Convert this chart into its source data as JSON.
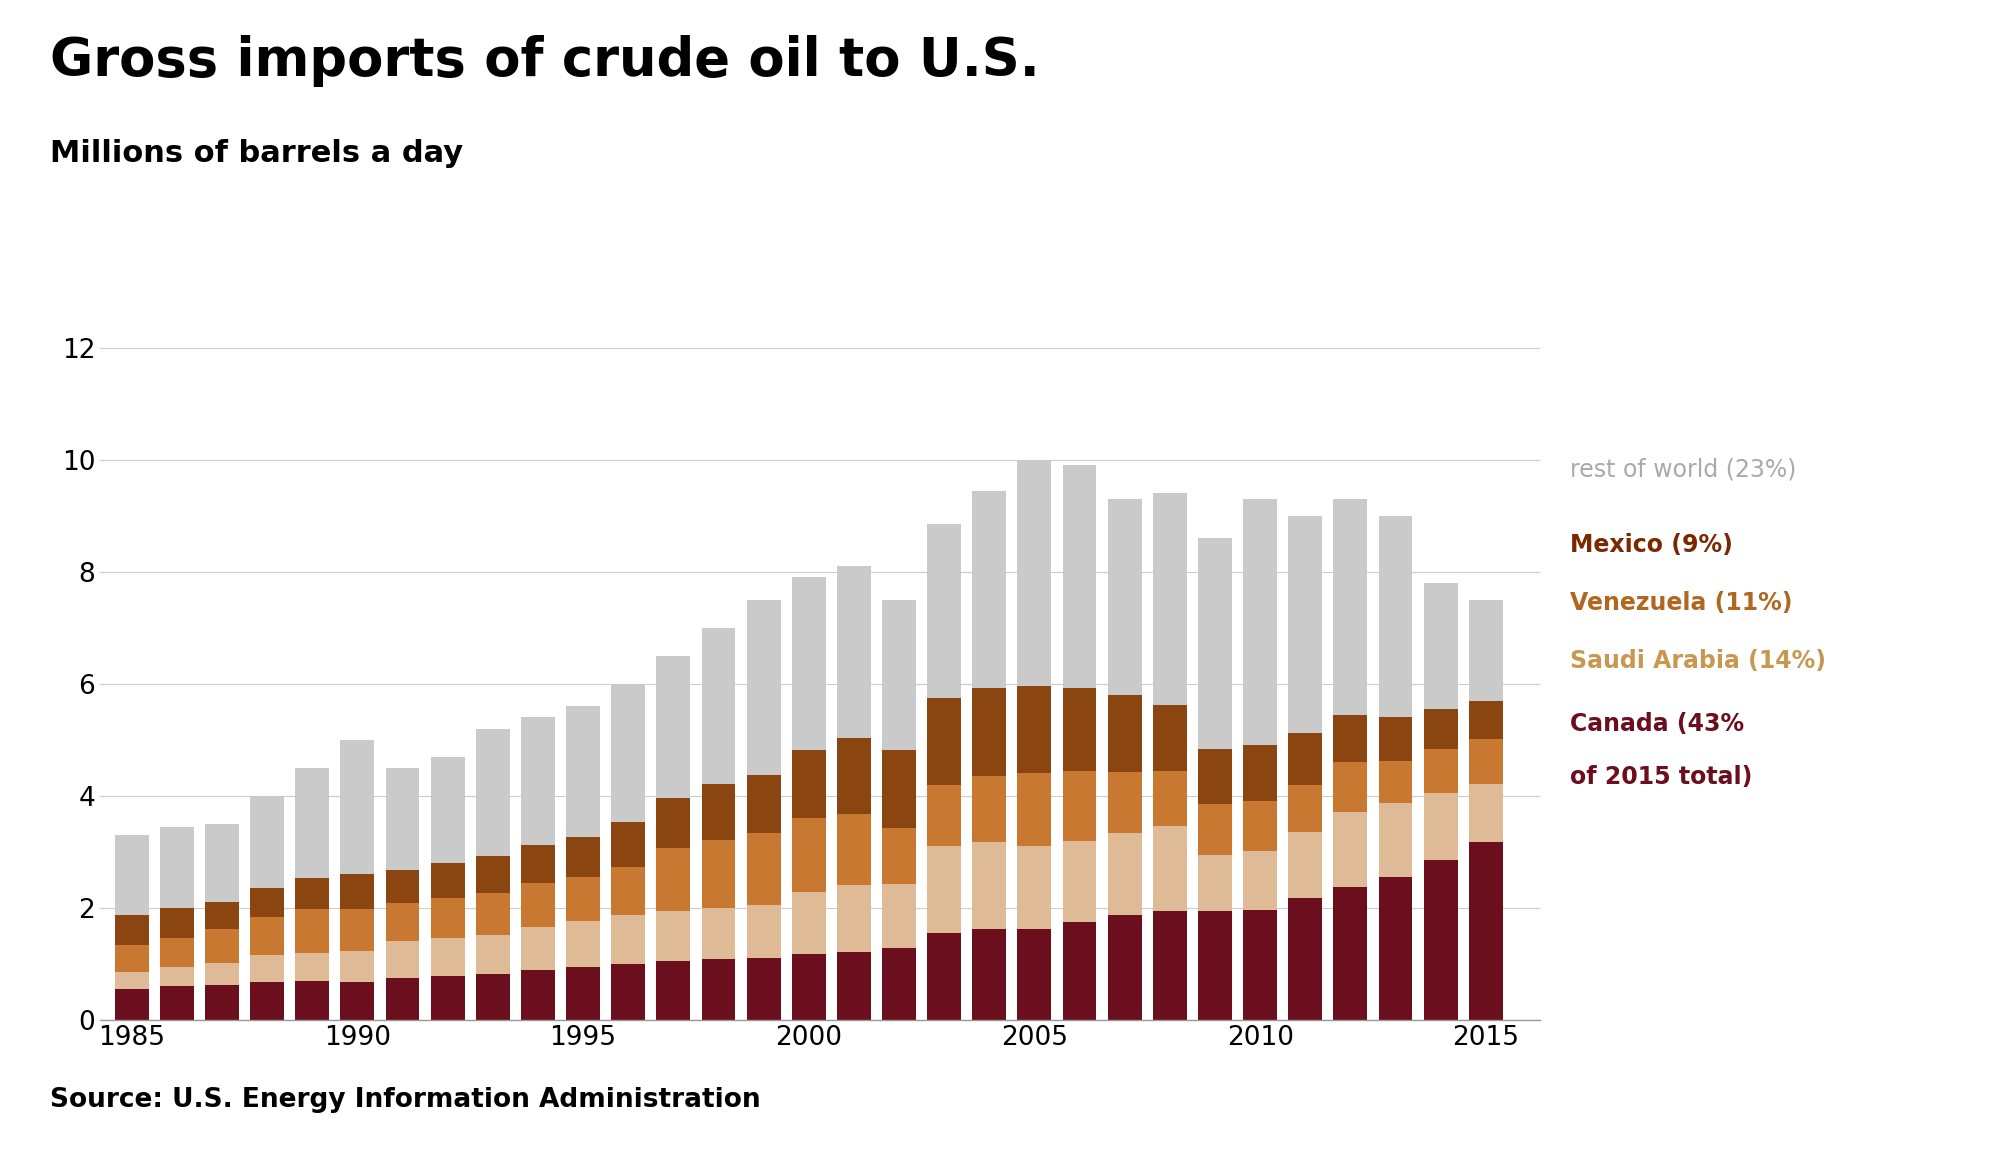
{
  "title": "Gross imports of crude oil to U.S.",
  "subtitle": "Millions of barrels a day",
  "source": "Source: U.S. Energy Information Administration",
  "years": [
    1985,
    1986,
    1987,
    1988,
    1989,
    1990,
    1991,
    1992,
    1993,
    1994,
    1995,
    1996,
    1997,
    1998,
    1999,
    2000,
    2001,
    2002,
    2003,
    2004,
    2005,
    2006,
    2007,
    2008,
    2009,
    2010,
    2011,
    2012,
    2013,
    2014,
    2015
  ],
  "canada": [
    0.55,
    0.6,
    0.62,
    0.68,
    0.7,
    0.68,
    0.75,
    0.78,
    0.82,
    0.9,
    0.95,
    1.0,
    1.05,
    1.08,
    1.1,
    1.18,
    1.22,
    1.28,
    1.55,
    1.62,
    1.63,
    1.75,
    1.87,
    1.95,
    1.95,
    1.97,
    2.17,
    2.37,
    2.55,
    2.85,
    3.17
  ],
  "saudi_arabia": [
    0.3,
    0.35,
    0.4,
    0.48,
    0.5,
    0.55,
    0.65,
    0.68,
    0.7,
    0.75,
    0.82,
    0.88,
    0.9,
    0.92,
    0.95,
    1.1,
    1.18,
    1.15,
    1.55,
    1.55,
    1.48,
    1.45,
    1.47,
    1.52,
    1.0,
    1.05,
    1.18,
    1.35,
    1.32,
    1.2,
    1.05
  ],
  "venezuela": [
    0.48,
    0.52,
    0.6,
    0.68,
    0.78,
    0.75,
    0.68,
    0.72,
    0.75,
    0.8,
    0.78,
    0.85,
    1.12,
    1.22,
    1.28,
    1.32,
    1.28,
    1.0,
    1.1,
    1.18,
    1.3,
    1.25,
    1.08,
    0.98,
    0.9,
    0.88,
    0.85,
    0.88,
    0.75,
    0.78,
    0.8
  ],
  "mexico": [
    0.55,
    0.52,
    0.48,
    0.52,
    0.55,
    0.62,
    0.6,
    0.62,
    0.65,
    0.68,
    0.72,
    0.8,
    0.9,
    1.0,
    1.05,
    1.22,
    1.35,
    1.38,
    1.55,
    1.58,
    1.55,
    1.48,
    1.38,
    1.18,
    0.98,
    1.0,
    0.92,
    0.85,
    0.78,
    0.72,
    0.68
  ],
  "rest_of_world": [
    1.42,
    1.46,
    1.4,
    1.64,
    1.97,
    2.4,
    1.82,
    1.9,
    2.28,
    2.27,
    2.33,
    2.47,
    2.53,
    2.78,
    3.12,
    3.08,
    3.07,
    2.69,
    3.1,
    3.52,
    4.04,
    3.97,
    3.5,
    3.77,
    3.77,
    4.4,
    3.88,
    3.85,
    3.6,
    2.25,
    1.8
  ],
  "colors": {
    "canada": "#6B0E1E",
    "saudi_arabia": "#DEBA96",
    "venezuela": "#C87830",
    "mexico": "#8B4510",
    "rest_of_world": "#CACACA"
  },
  "legend_text_colors": {
    "rest_of_world": "#AAAAAA",
    "mexico": "#7B2800",
    "venezuela": "#B06820",
    "saudi_arabia": "#C89850",
    "canada": "#6B0E1E"
  },
  "legend_labels": {
    "rest_of_world": "rest of world (23%)",
    "mexico": "Mexico (9%)",
    "venezuela": "Venezuela (11%)",
    "saudi_arabia": "Saudi Arabia (14%)",
    "canada": "Canada (43%\nof 2015 total)"
  },
  "ylim": [
    0,
    12
  ],
  "yticks": [
    0,
    2,
    4,
    6,
    8,
    10,
    12
  ],
  "background_color": "#FFFFFF"
}
